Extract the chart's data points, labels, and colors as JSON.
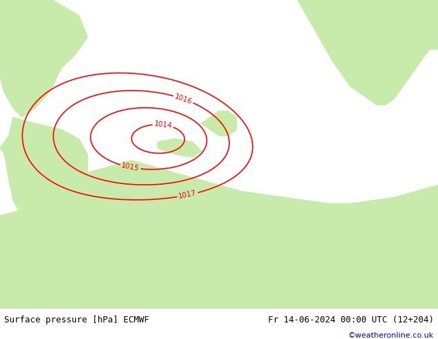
{
  "title_left": "Surface pressure [hPa] ECMWF",
  "title_right": "Fr 14-06-2024 00:00 UTC (12+204)",
  "credit": "©weatheronline.co.uk",
  "credit_color": "#0000cc",
  "sea_color": "#d8d8d8",
  "land_color": "#c8eaaa",
  "blue_color": "#0000ff",
  "black_color": "#000000",
  "red_color": "#ff0000",
  "figsize": [
    6.34,
    4.9
  ],
  "dpi": 100
}
